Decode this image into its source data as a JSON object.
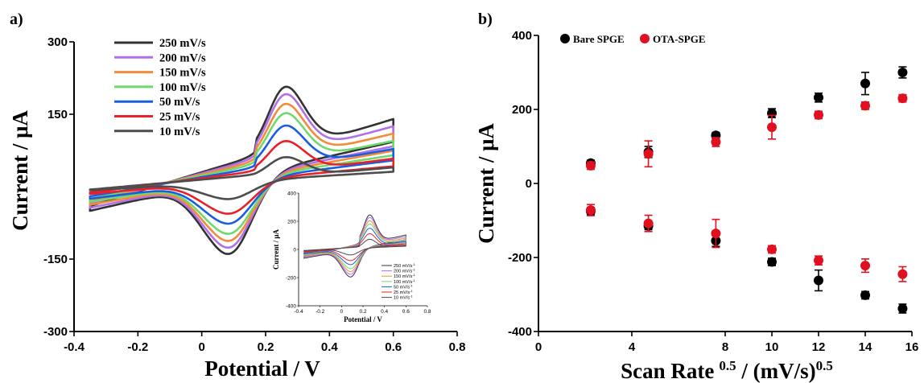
{
  "colors": {
    "cv_250": "#333333",
    "cv_200": "#b070e8",
    "cv_150": "#f58a3a",
    "cv_100": "#6fd86f",
    "cv_50": "#1a5ee0",
    "cv_25": "#e8202a",
    "cv_10": "#4d4d4d",
    "bare": "#000000",
    "ota": "#e01020"
  },
  "chart_data": [
    {
      "panel_label": "a)",
      "type": "line",
      "xlabel": "Potential / V",
      "ylabel": "Current / μA",
      "xlim": [
        -0.4,
        0.8
      ],
      "ylim": [
        -300,
        300
      ],
      "xticks": [
        "-0.4",
        "-0.2",
        "0",
        "0.2",
        "0.4",
        "0.6",
        "0.8"
      ],
      "yticks": [
        "300",
        "150",
        "-150",
        "-300"
      ],
      "grid": false,
      "legend_position": "top-left",
      "cv_model": {
        "e_start": -0.35,
        "e_end": 0.6,
        "e_pa": 0.22,
        "e_pc": 0.08
      },
      "series": [
        {
          "name": "250 mV/s",
          "color_key": "cv_250",
          "ipa": 242,
          "ipc": -235,
          "i_start": -40,
          "i_end": 150
        },
        {
          "name": "200 mV/s",
          "color_key": "cv_200",
          "ipa": 225,
          "ipc": -212,
          "i_start": -35,
          "i_end": 135
        },
        {
          "name": "150 mV/s",
          "color_key": "cv_150",
          "ipa": 202,
          "ipc": -188,
          "i_start": -30,
          "i_end": 120
        },
        {
          "name": "100 mV/s",
          "color_key": "cv_100",
          "ipa": 180,
          "ipc": -163,
          "i_start": -25,
          "i_end": 105
        },
        {
          "name": "50 mV/s",
          "color_key": "cv_50",
          "ipa": 150,
          "ipc": -130,
          "i_start": -20,
          "i_end": 88
        },
        {
          "name": "25 mV/s",
          "color_key": "cv_25",
          "ipa": 112,
          "ipc": -95,
          "i_start": -12,
          "i_end": 68
        },
        {
          "name": "10 mV/s",
          "color_key": "cv_10",
          "ipa": 72,
          "ipc": -50,
          "i_start": -6,
          "i_end": 50
        }
      ],
      "inset": {
        "xlabel": "Potential / V",
        "ylabel": "Current / μA",
        "xlim": [
          -0.4,
          0.8
        ],
        "ylim": [
          -400,
          400
        ],
        "xticks": [
          "-0.4",
          "-0.2",
          "0",
          "0.2",
          "0.4",
          "0.6",
          "0.8"
        ],
        "yticks": [
          "400",
          "200",
          "0",
          "-200",
          "-400"
        ],
        "legend": [
          "250 mV/s",
          "200 mV/s",
          "150 mV/s",
          "100 mV/s",
          "50 mV/s",
          "25 mV/s",
          "10 mV/s"
        ],
        "superscript": "-1",
        "scale": 1.25
      }
    },
    {
      "panel_label": "b)",
      "type": "scatter",
      "xlabel_main": "Scan Rate",
      "xlabel_sup": "0.5",
      "xlabel_mid": " / (mV/s)",
      "xlabel_sup2": "0.5",
      "ylabel": "Current / μA",
      "xlim": [
        0,
        16
      ],
      "ylim": [
        -400,
        400
      ],
      "xticks": [
        "0",
        "4",
        "8",
        "10",
        "12",
        "14",
        "16"
      ],
      "xtick_values": [
        0,
        4,
        8,
        10,
        12,
        14,
        16
      ],
      "yticks": [
        "400",
        "200",
        "0",
        "-200",
        "-400"
      ],
      "grid": false,
      "legend_position": "top-left",
      "series": [
        {
          "name": "Bare SPGE",
          "color_key": "bare",
          "x": [
            2.24,
            4.71,
            7.6,
            10,
            12,
            14,
            15.6
          ],
          "anodic": [
            55,
            85,
            130,
            190,
            232,
            270,
            300
          ],
          "anodic_err": [
            8,
            15,
            8,
            12,
            12,
            30,
            15
          ],
          "cathodic": [
            -75,
            -115,
            -155,
            -212,
            -262,
            -302,
            -338
          ],
          "cathodic_err": [
            10,
            10,
            15,
            10,
            28,
            10,
            12
          ]
        },
        {
          "name": "OTA-SPGE",
          "color_key": "ota",
          "x": [
            2.24,
            4.71,
            7.6,
            10,
            12,
            14,
            15.6
          ],
          "anodic": [
            48,
            80,
            112,
            152,
            185,
            210,
            230
          ],
          "anodic_err": [
            10,
            35,
            12,
            32,
            10,
            10,
            10
          ],
          "cathodic": [
            -72,
            -108,
            -135,
            -178,
            -208,
            -222,
            -245
          ],
          "cathodic_err": [
            15,
            22,
            38,
            10,
            12,
            18,
            20
          ]
        }
      ]
    }
  ]
}
